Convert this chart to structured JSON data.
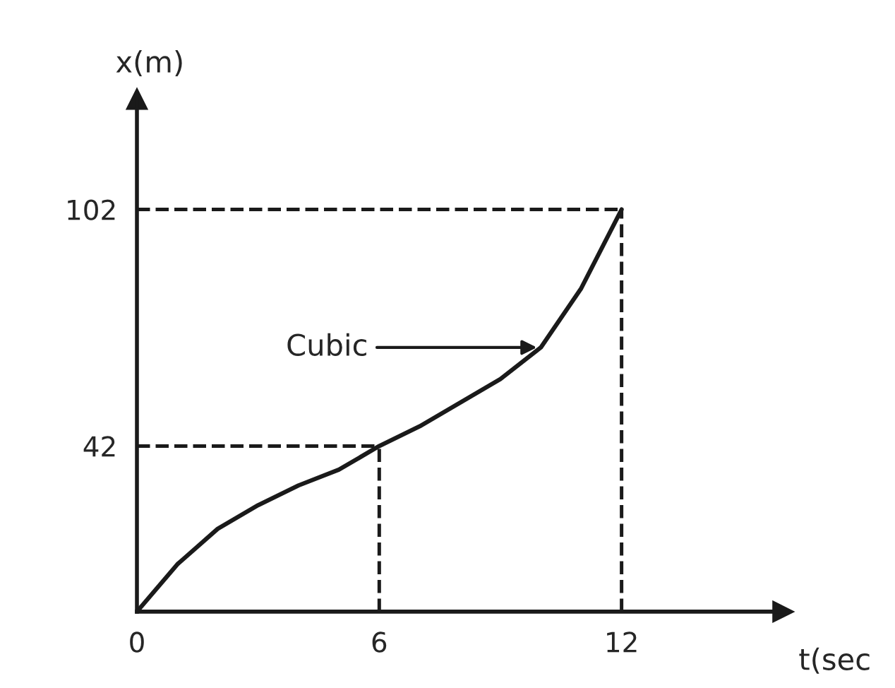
{
  "chart_data": {
    "type": "line",
    "xlabel": "t(sec",
    "ylabel": "x(m)",
    "x": [
      0,
      1,
      2,
      3,
      4,
      5,
      6,
      7,
      8,
      9,
      10,
      11,
      12
    ],
    "series": [
      {
        "color": "#1a1a1a",
        "values": [
          0,
          12,
          21,
          27,
          32,
          36,
          42,
          47,
          53,
          59,
          67,
          82,
          102
        ]
      }
    ],
    "xlim": [
      0,
      16
    ],
    "ylim": [
      0,
      130
    ],
    "xticks": [
      0,
      6,
      12
    ],
    "yticks": [
      42,
      102
    ],
    "ref_lines": [
      {
        "axis": "x",
        "value": 6,
        "line_style": "dashed",
        "color": "#1a1a1a"
      },
      {
        "axis": "x",
        "value": 12,
        "line_style": "dashed",
        "color": "#1a1a1a"
      },
      {
        "axis": "y",
        "value": 42,
        "line_style": "dashed",
        "color": "#1a1a1a"
      },
      {
        "axis": "y",
        "value": 102,
        "line_style": "dashed",
        "color": "#1a1a1a"
      }
    ],
    "annotations": [
      {
        "text": "Cubic",
        "x": 10,
        "y": 67
      }
    ],
    "grid": false,
    "legend": false,
    "line_style": "solid",
    "marker": "none"
  }
}
